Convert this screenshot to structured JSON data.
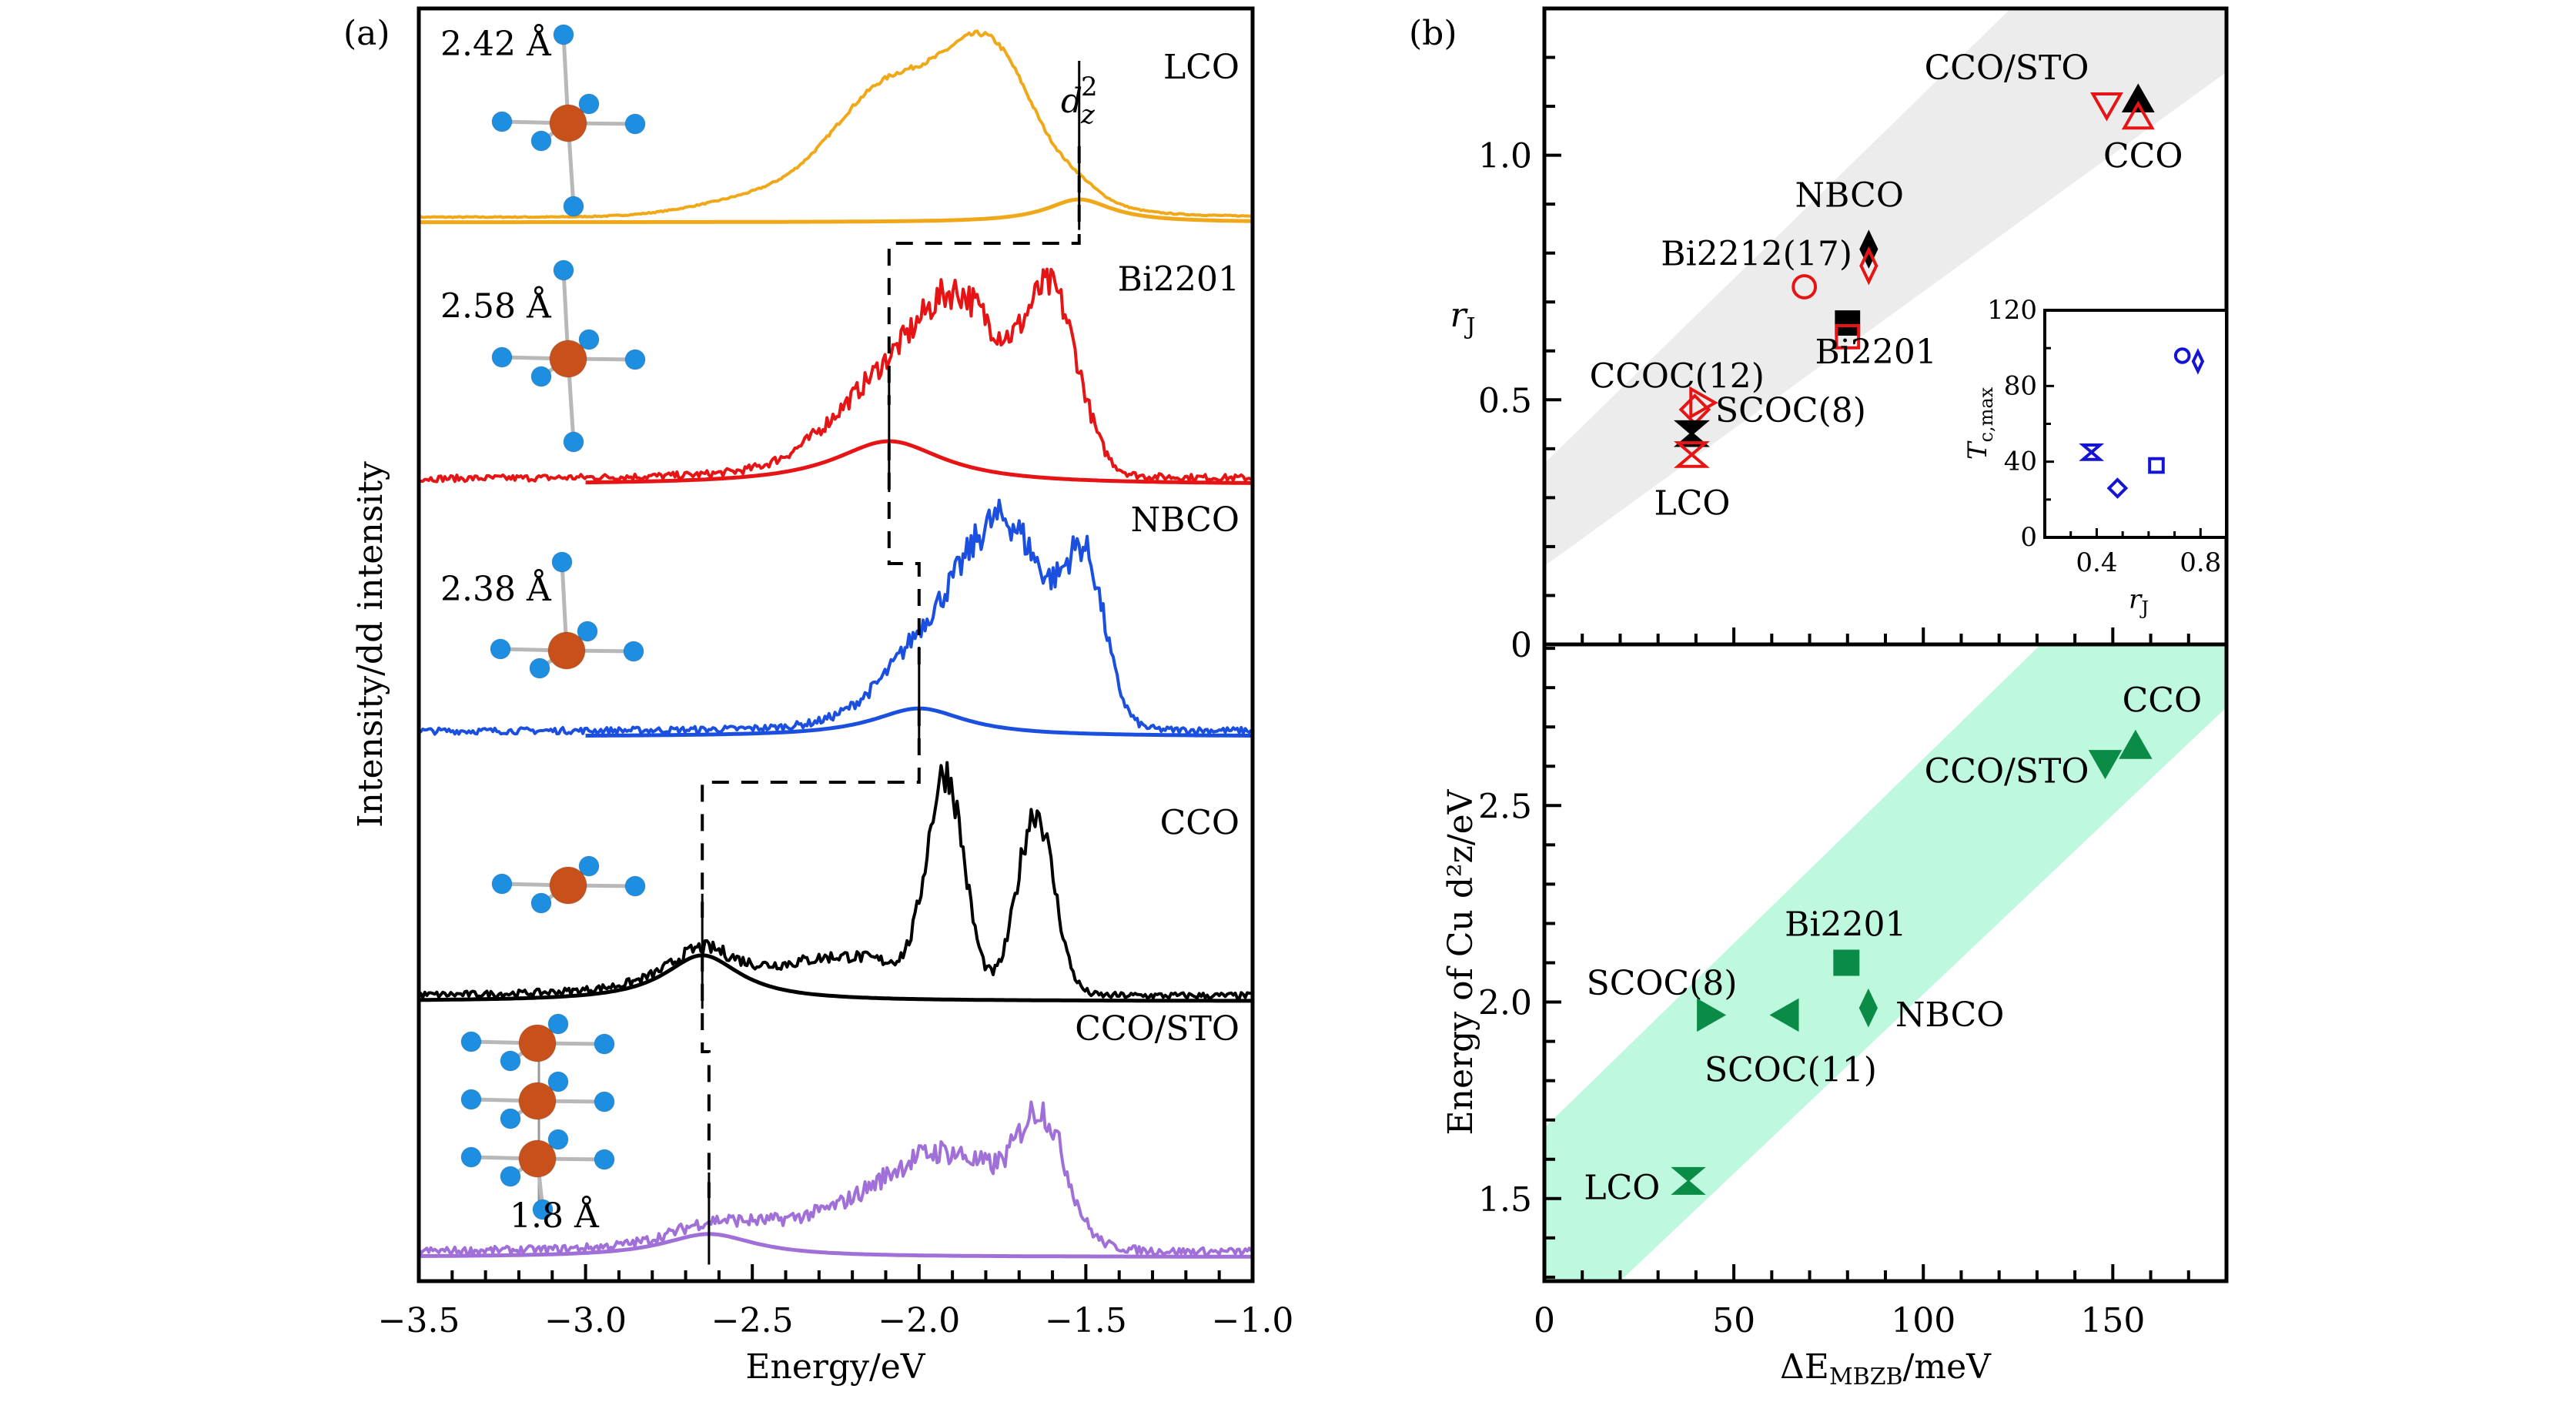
{
  "chart_data": [
    {
      "id": "a",
      "panel_label": "(a)",
      "type": "line",
      "xlabel": "Energy/eV",
      "ylabel": "Intensity/dd intensity",
      "xlim": [
        -3.5,
        -1.0
      ],
      "ylim": [
        0,
        5
      ],
      "xticks": [
        -3.5,
        -3.0,
        -2.5,
        -2.0,
        -1.5,
        -1.0
      ],
      "xtick_labels": [
        "−3.5",
        "−3.0",
        "−2.5",
        "−2.0",
        "−1.5",
        "−1.0"
      ],
      "minor_xtick_step": 0.1,
      "orbital_label": "d",
      "orbital_sup": "2",
      "orbital_sub": "z",
      "series": [
        {
          "name": "LCO",
          "color": "#f0a818",
          "offset": 4.18,
          "bond_length": "2.42 Å",
          "structure": "octahedron",
          "peaks": [
            {
              "e": -2.08,
              "w": 0.17,
              "a": 0.5
            },
            {
              "e": -1.78,
              "w": 0.13,
              "a": 0.58
            },
            {
              "e": -2.45,
              "w": 0.2,
              "a": 0.08
            }
          ],
          "fit": {
            "e": -1.52,
            "w": 0.12,
            "a": 0.09
          },
          "noise": 0.004,
          "fit_from": -3.5
        },
        {
          "name": "Bi2201",
          "color": "#e61414",
          "offset": 3.15,
          "bond_length": "2.58 Å",
          "structure": "octahedron",
          "peaks": [
            {
              "e": -1.87,
              "w": 0.13,
              "a": 0.62
            },
            {
              "e": -1.6,
              "w": 0.08,
              "a": 0.66
            },
            {
              "e": -2.15,
              "w": 0.15,
              "a": 0.18
            }
          ],
          "fit": {
            "e": -2.09,
            "w": 0.2,
            "a": 0.17
          },
          "noise": 0.025,
          "fit_from": -3.0
        },
        {
          "name": "NBCO",
          "color": "#1a4fe0",
          "offset": 2.16,
          "bond_length": "2.38 Å",
          "structure": "pyramid",
          "peaks": [
            {
              "e": -1.73,
              "w": 0.13,
              "a": 0.72
            },
            {
              "e": -1.5,
              "w": 0.06,
              "a": 0.55
            },
            {
              "e": -1.95,
              "w": 0.15,
              "a": 0.22
            }
          ],
          "fit": {
            "e": -2.0,
            "w": 0.17,
            "a": 0.11
          },
          "noise": 0.025,
          "fit_from": -3.0
        },
        {
          "name": "CCO",
          "color": "#000000",
          "offset": 1.12,
          "bond_length": "",
          "structure": "plaquette",
          "peaks": [
            {
              "e": -1.92,
              "w": 0.055,
              "a": 0.82
            },
            {
              "e": -1.65,
              "w": 0.055,
              "a": 0.72
            },
            {
              "e": -2.2,
              "w": 0.2,
              "a": 0.14
            }
          ],
          "fit": {
            "e": -2.65,
            "w": 0.14,
            "a": 0.18
          },
          "noise": 0.025,
          "fit_from": -3.5
        },
        {
          "name": "CCO/STO",
          "color": "#a070d8",
          "offset": 0.115,
          "bond_length": "1.8 Å",
          "structure": "stack",
          "peaks": [
            {
              "e": -1.63,
              "w": 0.07,
              "a": 0.42
            },
            {
              "e": -1.92,
              "w": 0.2,
              "a": 0.38
            },
            {
              "e": -2.35,
              "w": 0.2,
              "a": 0.08
            }
          ],
          "fit": {
            "e": -2.63,
            "w": 0.17,
            "a": 0.09
          },
          "noise": 0.03,
          "fit_from": -3.5
        }
      ],
      "dashed_guides": [
        [
          -1.52,
          -2.09
        ],
        [
          -2.09,
          -2.0
        ],
        [
          -2.0,
          -2.65
        ],
        [
          -2.65,
          -2.63
        ]
      ]
    },
    {
      "id": "b-top",
      "panel_label": "(b)",
      "type": "scatter",
      "ylabel": "r",
      "ylabel_sub": "J",
      "xlim": [
        0,
        180
      ],
      "ylim": [
        0,
        1.3
      ],
      "yticks": [
        0,
        0.5,
        1.0
      ],
      "ytick_labels": [
        "0",
        "0.5",
        "1.0"
      ],
      "minor_ytick_step": 0.1,
      "band": {
        "color": "#ececec",
        "upper": [
          [
            0,
            0.37
          ],
          [
            180,
            1.73
          ]
        ],
        "lower": [
          [
            0,
            0.16
          ],
          [
            180,
            1.17
          ]
        ]
      },
      "points": [
        {
          "label": "CCO/STO",
          "x": 148.4,
          "y": 1.104,
          "marker": "tri-down",
          "fill": "none",
          "color": "#e61414"
        },
        {
          "label": "CCO",
          "x": 156.7,
          "y": 1.112,
          "marker": "tri-up",
          "fill": "#000000",
          "color": "#000000"
        },
        {
          "label": "CCO",
          "x": 156.7,
          "y": 1.077,
          "marker": "tri-up",
          "fill": "none",
          "color": "#e61414"
        },
        {
          "label": "NBCO",
          "x": 85.6,
          "y": 0.808,
          "marker": "thin-diamond",
          "fill": "#000000",
          "color": "#000000"
        },
        {
          "label": "NBCO",
          "x": 85.6,
          "y": 0.774,
          "marker": "thin-diamond",
          "fill": "none",
          "color": "#e61414"
        },
        {
          "label": "Bi2212(17)",
          "x": 68.6,
          "y": 0.731,
          "marker": "circle",
          "fill": "none",
          "color": "#e61414"
        },
        {
          "label": "Bi2201",
          "x": 80.0,
          "y": 0.657,
          "marker": "square",
          "fill": "#000000",
          "color": "#000000"
        },
        {
          "label": "Bi2201",
          "x": 80.0,
          "y": 0.629,
          "marker": "square",
          "fill": "none",
          "color": "#e61414"
        },
        {
          "label": "CCOC(12)",
          "x": 39.7,
          "y": 0.48,
          "marker": "diamond",
          "fill": "none",
          "color": "#e61414"
        },
        {
          "label": "SCOC(8)",
          "x": 41.4,
          "y": 0.494,
          "marker": "tri-right",
          "fill": "none",
          "color": "#e61414"
        },
        {
          "label": "LCO",
          "x": 38.9,
          "y": 0.431,
          "marker": "hourglass",
          "fill": "#000000",
          "color": "#000000"
        },
        {
          "label": "LCO",
          "x": 38.9,
          "y": 0.388,
          "marker": "hourglass",
          "fill": "none",
          "color": "#e61414"
        }
      ],
      "annotations": [
        {
          "text": "CCO/STO",
          "x": 122,
          "y": 1.18
        },
        {
          "text": "CCO",
          "x": 158,
          "y": 1.0
        },
        {
          "text": "NBCO",
          "x": 80.5,
          "y": 0.92
        },
        {
          "text": "Bi2212(17)",
          "x": 56,
          "y": 0.8
        },
        {
          "text": "Bi2201",
          "x": 87.5,
          "y": 0.6
        },
        {
          "text": "CCOC(12)",
          "x": 35,
          "y": 0.55
        },
        {
          "text": "SCOC(8)",
          "x": 65,
          "y": 0.48
        },
        {
          "text": "LCO",
          "x": 39,
          "y": 0.29
        }
      ],
      "inset": {
        "type": "scatter",
        "xlabel": "r",
        "xlabel_sub": "J",
        "ylabel": "T",
        "ylabel_sub": "c,max",
        "xlim": [
          0.2,
          0.9
        ],
        "ylim": [
          0,
          120
        ],
        "xticks": [
          0.4,
          0.8
        ],
        "xtick_labels": [
          "0.4",
          "0.8"
        ],
        "yticks": [
          0,
          40,
          80,
          120
        ],
        "ytick_labels": [
          "0",
          "40",
          "80",
          "120"
        ],
        "color": "#1414d2",
        "points": [
          {
            "x": 0.38,
            "y": 45,
            "marker": "hourglass"
          },
          {
            "x": 0.48,
            "y": 26,
            "marker": "diamond"
          },
          {
            "x": 0.63,
            "y": 38,
            "marker": "square"
          },
          {
            "x": 0.73,
            "y": 96,
            "marker": "circle"
          },
          {
            "x": 0.79,
            "y": 93,
            "marker": "thin-diamond"
          }
        ]
      }
    },
    {
      "id": "b-bottom",
      "type": "scatter",
      "xlabel_prefix": "ΔE",
      "xlabel_sub": "MBZB",
      "xlabel_suffix": "/meV",
      "ylabel": "Energy of Cu d²z/eV",
      "xlim": [
        0,
        180
      ],
      "ylim": [
        1.29,
        2.91
      ],
      "xticks": [
        0,
        50,
        100,
        150
      ],
      "xtick_labels": [
        "0",
        "50",
        "100",
        "150"
      ],
      "minor_xtick_step": 10,
      "yticks": [
        1.5,
        2.0,
        2.5
      ],
      "ytick_labels": [
        "1.5",
        "2.0",
        "2.5"
      ],
      "minor_ytick_step": 0.1,
      "band": {
        "color": "#bdf8df",
        "upper": [
          [
            0,
            1.68
          ],
          [
            131,
            2.91
          ],
          [
            180,
            2.91
          ]
        ],
        "lower": [
          [
            0,
            1.29
          ],
          [
            20,
            1.29
          ],
          [
            180,
            2.75
          ]
        ]
      },
      "marker_color": "#0a8c46",
      "points": [
        {
          "label": "CCO",
          "x": 156,
          "y": 2.65,
          "marker": "tri-up"
        },
        {
          "label": "CCO/STO",
          "x": 148,
          "y": 2.61,
          "marker": "tri-down"
        },
        {
          "label": "Bi2201",
          "x": 79.7,
          "y": 2.1,
          "marker": "square"
        },
        {
          "label": "NBCO",
          "x": 85.5,
          "y": 1.985,
          "marker": "thin-diamond"
        },
        {
          "label": "SCOC(8)",
          "x": 43.5,
          "y": 1.967,
          "marker": "tri-right"
        },
        {
          "label": "SCOC(11)",
          "x": 63.9,
          "y": 1.967,
          "marker": "tri-left"
        },
        {
          "label": "LCO",
          "x": 38,
          "y": 1.545,
          "marker": "hourglass"
        }
      ],
      "annotations": [
        {
          "text": "CCO",
          "x": 163,
          "y": 2.77
        },
        {
          "text": "CCO/STO",
          "x": 122,
          "y": 2.59
        },
        {
          "text": "Bi2201",
          "x": 79.5,
          "y": 2.2
        },
        {
          "text": "SCOC(8)",
          "x": 31,
          "y": 2.05
        },
        {
          "text": "NBCO",
          "x": 107,
          "y": 1.97
        },
        {
          "text": "SCOC(11)",
          "x": 65,
          "y": 1.83
        },
        {
          "text": "LCO",
          "x": 20.5,
          "y": 1.53
        }
      ]
    }
  ]
}
